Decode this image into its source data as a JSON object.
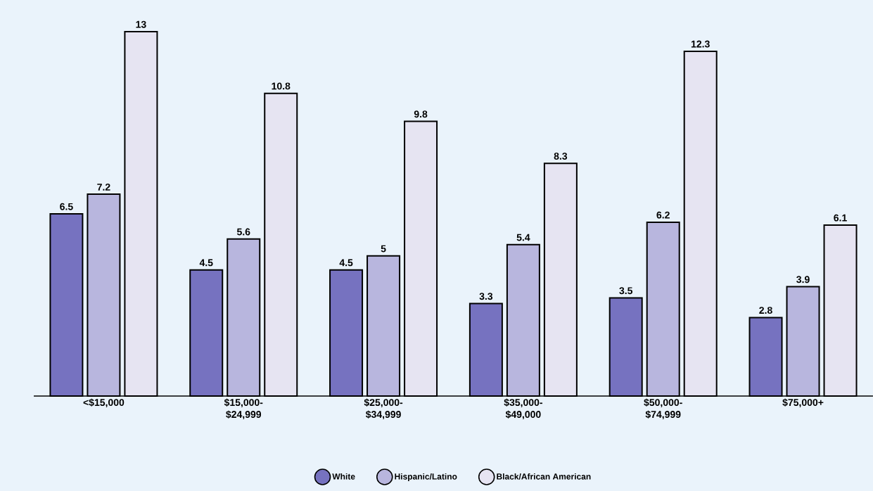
{
  "chart_data": {
    "type": "bar",
    "categories": [
      "<$15,000",
      "$15,000-$24,999",
      "$25,000-$34,999",
      "$35,000-$49,000",
      "$50,000-$74,999",
      "$75,000+"
    ],
    "series": [
      {
        "name": "White",
        "color": "#7672c0",
        "values": [
          6.5,
          4.5,
          4.5,
          3.3,
          3.5,
          2.8
        ]
      },
      {
        "name": "Hispanic/Latino",
        "color": "#b8b6de",
        "values": [
          7.2,
          5.6,
          5,
          5.4,
          6.2,
          3.9
        ]
      },
      {
        "name": "Black/African American",
        "color": "#e6e4f2",
        "values": [
          13,
          10.8,
          9.8,
          8.3,
          12.3,
          6.1
        ]
      }
    ],
    "ylim": [
      0,
      13
    ],
    "data_labels": true,
    "legend": "bottom",
    "tick_labels": "x"
  }
}
